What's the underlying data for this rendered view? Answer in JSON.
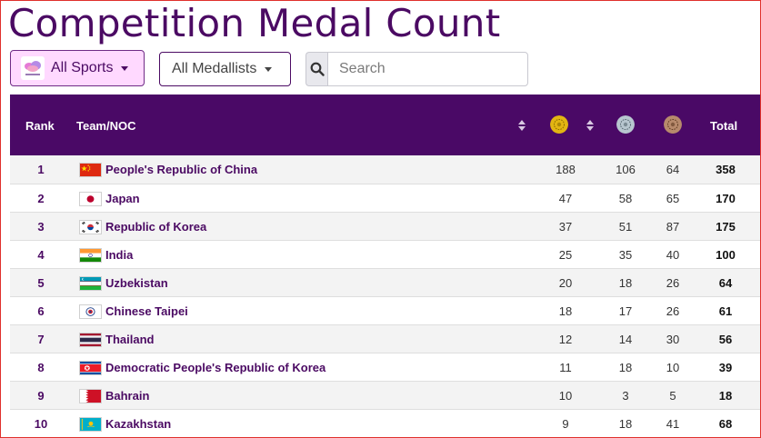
{
  "page": {
    "title": "Competition Medal Count"
  },
  "filters": {
    "sports_label": "All Sports",
    "medallists_label": "All Medallists",
    "search_placeholder": "Search"
  },
  "table": {
    "headers": {
      "rank": "Rank",
      "team": "Team/NOC",
      "total": "Total"
    },
    "medal_colors": {
      "gold": "#e2b512",
      "silver": "#b7c6cf",
      "bronze": "#b78a6c"
    },
    "rows": [
      {
        "rank": "1",
        "team": "People's Republic of China",
        "flag": "china-flag-icon",
        "gold": "188",
        "silver": "106",
        "bronze": "64",
        "total": "358"
      },
      {
        "rank": "2",
        "team": "Japan",
        "flag": "japan-flag-icon",
        "gold": "47",
        "silver": "58",
        "bronze": "65",
        "total": "170"
      },
      {
        "rank": "3",
        "team": "Republic of Korea",
        "flag": "korea-flag-icon",
        "gold": "37",
        "silver": "51",
        "bronze": "87",
        "total": "175"
      },
      {
        "rank": "4",
        "team": "India",
        "flag": "india-flag-icon",
        "gold": "25",
        "silver": "35",
        "bronze": "40",
        "total": "100"
      },
      {
        "rank": "5",
        "team": "Uzbekistan",
        "flag": "uzbekistan-flag-icon",
        "gold": "20",
        "silver": "18",
        "bronze": "26",
        "total": "64"
      },
      {
        "rank": "6",
        "team": "Chinese Taipei",
        "flag": "chinese-taipei-flag-icon",
        "gold": "18",
        "silver": "17",
        "bronze": "26",
        "total": "61"
      },
      {
        "rank": "7",
        "team": "Thailand",
        "flag": "thailand-flag-icon",
        "gold": "12",
        "silver": "14",
        "bronze": "30",
        "total": "56"
      },
      {
        "rank": "8",
        "team": "Democratic People's Republic of Korea",
        "flag": "dprk-flag-icon",
        "gold": "11",
        "silver": "18",
        "bronze": "10",
        "total": "39"
      },
      {
        "rank": "9",
        "team": "Bahrain",
        "flag": "bahrain-flag-icon",
        "gold": "10",
        "silver": "3",
        "bronze": "5",
        "total": "18"
      },
      {
        "rank": "10",
        "team": "Kazakhstan",
        "flag": "kazakhstan-flag-icon",
        "gold": "9",
        "silver": "18",
        "bronze": "41",
        "total": "68"
      }
    ]
  }
}
